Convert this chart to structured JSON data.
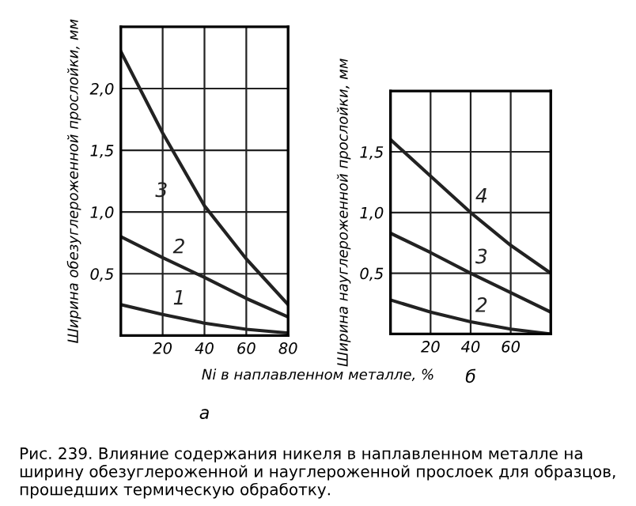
{
  "chart_data": [
    {
      "type": "line",
      "xlabel": "Ni в наплавленном металле, %",
      "ylabel": "Ширина обезуглероженной прослойки, мм",
      "x": [
        0,
        20,
        40,
        60,
        80
      ],
      "series": [
        {
          "name": "1",
          "color": "#222222",
          "values": [
            0.25,
            0.17,
            0.1,
            0.05,
            0.02
          ]
        },
        {
          "name": "2",
          "color": "#222222",
          "values": [
            0.8,
            0.63,
            0.47,
            0.3,
            0.15
          ]
        },
        {
          "name": "3",
          "color": "#222222",
          "values": [
            2.3,
            1.64,
            1.05,
            0.62,
            0.25
          ]
        }
      ],
      "xlim": [
        0,
        80
      ],
      "ylim": [
        0,
        2.5
      ],
      "xticks": [
        20,
        40,
        60,
        80
      ],
      "yticks": [
        {
          "value": 0.5,
          "label": "0,5"
        },
        {
          "value": 1.0,
          "label": "1,0"
        },
        {
          "value": 1.5,
          "label": "1,5"
        },
        {
          "value": 2.0,
          "label": "2,0"
        }
      ],
      "grid": true,
      "annotations": [
        "а",
        "Рис. 239. Влияние содержания никеля в наплавленном металле на ширину обезуглероженной и науглероженной прослоек для образцов, прошедших термическую обработку."
      ]
    },
    {
      "type": "line",
      "ylabel": "Ширина науглероженной прослойки, мм",
      "x": [
        0,
        20,
        40,
        60,
        80
      ],
      "series": [
        {
          "name": "2",
          "color": "#222222",
          "values": [
            0.28,
            0.18,
            0.1,
            0.04,
            0.0
          ]
        },
        {
          "name": "3",
          "color": "#222222",
          "values": [
            0.83,
            0.67,
            0.5,
            0.34,
            0.18
          ]
        },
        {
          "name": "4",
          "color": "#222222",
          "values": [
            1.6,
            1.3,
            1.0,
            0.73,
            0.5
          ]
        }
      ],
      "xlim": [
        0,
        80
      ],
      "ylim": [
        0,
        2.0
      ],
      "xticks": [
        20,
        40,
        60
      ],
      "yticks": [
        {
          "value": 0.5,
          "label": "0,5"
        },
        {
          "value": 1.0,
          "label": "1,0"
        },
        {
          "value": 1.5,
          "label": "1,5"
        }
      ],
      "grid": true,
      "annotations": [
        "б"
      ]
    }
  ]
}
